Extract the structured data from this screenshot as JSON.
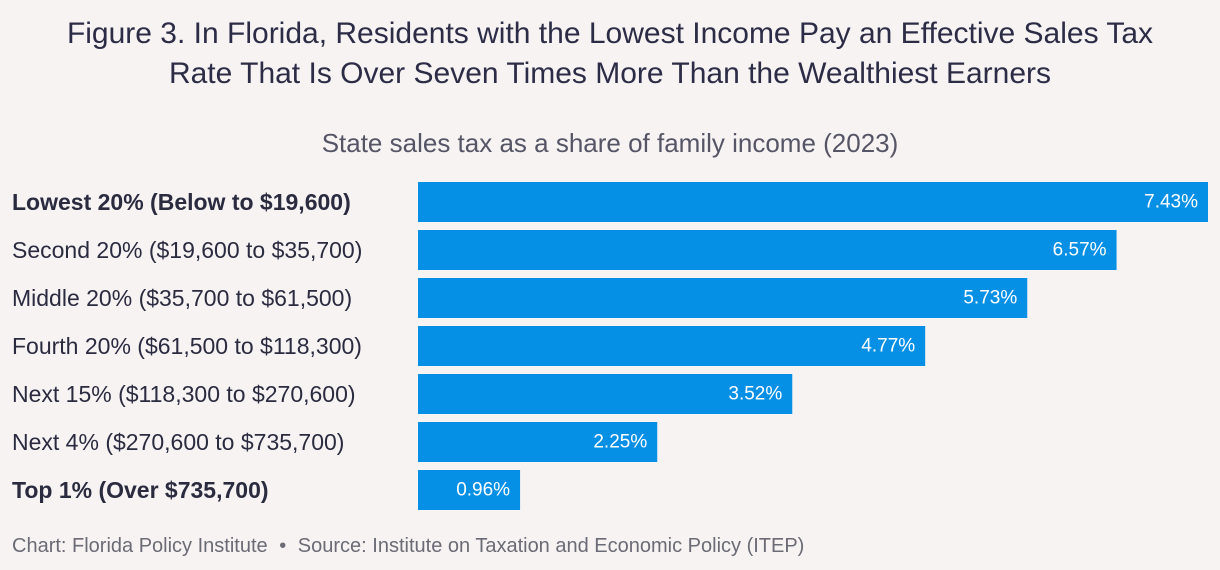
{
  "title_line1": "Figure 3. In Florida, Residents with the Lowest Income Pay an Effective Sales Tax",
  "title_line2": "Rate That Is Over Seven Times More Than the Wealthiest Earners",
  "subtitle": "State sales tax as a share of family income (2023)",
  "footer": {
    "credit": "Chart: Florida Policy Institute",
    "separator": "•",
    "source": "Source: Institute on Taxation and Economic Policy (ITEP)"
  },
  "colors": {
    "bar": "#0590e6",
    "background": "#f6f3f2"
  },
  "chart_data": {
    "type": "bar",
    "orientation": "horizontal",
    "title": "Figure 3. In Florida, Residents with the Lowest Income Pay an Effective Sales Tax Rate That Is Over Seven Times More Than the Wealthiest Earners",
    "subtitle": "State sales tax as a share of family income (2023)",
    "xlabel": "",
    "ylabel": "",
    "xlim": [
      0,
      7.43
    ],
    "grid": false,
    "categories": [
      "Lowest 20% (Below to $19,600)",
      "Second 20% ($19,600 to $35,700)",
      "Middle 20% ($35,700 to $61,500)",
      "Fourth 20% ($61,500 to $118,300)",
      "Next 15% ($118,300 to $270,600)",
      "Next 4% ($270,600 to $735,700)",
      "Top 1% (Over $735,700)"
    ],
    "bold_categories": [
      true,
      false,
      false,
      false,
      false,
      false,
      true
    ],
    "values": [
      7.43,
      6.57,
      5.73,
      4.77,
      3.52,
      2.25,
      0.96
    ],
    "value_labels": [
      "7.43%",
      "6.57%",
      "5.73%",
      "4.77%",
      "3.52%",
      "2.25%",
      "0.96%"
    ]
  }
}
